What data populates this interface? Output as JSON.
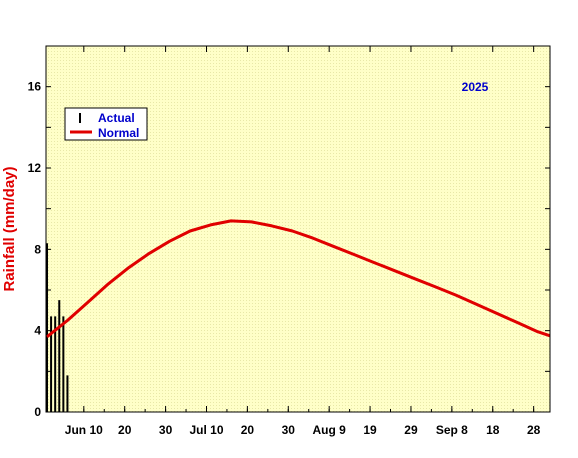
{
  "chart_data": {
    "type": "bar+line",
    "year": "2025",
    "ylabel": "Rainfall (mm/day)",
    "ylim": [
      0,
      18
    ],
    "yticks": [
      0,
      4,
      8,
      12,
      16
    ],
    "x_unit": "days since Jun 1",
    "xlim": [
      0,
      123
    ],
    "xticks": [
      {
        "day": 9,
        "label": "Jun 10"
      },
      {
        "day": 19,
        "label": "20"
      },
      {
        "day": 29,
        "label": "30"
      },
      {
        "day": 39,
        "label": "Jul 10"
      },
      {
        "day": 49,
        "label": "20"
      },
      {
        "day": 59,
        "label": "30"
      },
      {
        "day": 69,
        "label": "Aug 9"
      },
      {
        "day": 79,
        "label": "19"
      },
      {
        "day": 89,
        "label": "29"
      },
      {
        "day": 99,
        "label": "Sep 8"
      },
      {
        "day": 109,
        "label": "18"
      },
      {
        "day": 119,
        "label": "28"
      }
    ],
    "legend": [
      {
        "name": "Actual",
        "color": "#000000"
      },
      {
        "name": "Normal",
        "color": "#e00000"
      }
    ],
    "legend_position": "top-left",
    "series": [
      {
        "name": "Actual",
        "kind": "bar",
        "color": "#000000",
        "x": [
          0,
          1,
          2,
          3,
          4,
          5
        ],
        "values": [
          8.3,
          4.7,
          4.7,
          5.5,
          4.7,
          1.8
        ]
      },
      {
        "name": "Normal",
        "kind": "line",
        "color": "#e00000",
        "x": [
          0,
          5,
          10,
          15,
          20,
          25,
          30,
          35,
          40,
          45,
          50,
          55,
          60,
          65,
          70,
          75,
          80,
          85,
          90,
          95,
          100,
          105,
          110,
          115,
          120,
          123
        ],
        "values": [
          3.7,
          4.5,
          5.4,
          6.3,
          7.1,
          7.8,
          8.4,
          8.9,
          9.2,
          9.4,
          9.35,
          9.15,
          8.9,
          8.55,
          8.15,
          7.75,
          7.35,
          6.95,
          6.55,
          6.15,
          5.75,
          5.3,
          4.85,
          4.4,
          3.95,
          3.75
        ]
      }
    ],
    "colors": {
      "plot_background": "#ffffcc",
      "ylabel": "#e00000",
      "legend_text": "#0000cc",
      "year_label": "#0000cc"
    }
  }
}
